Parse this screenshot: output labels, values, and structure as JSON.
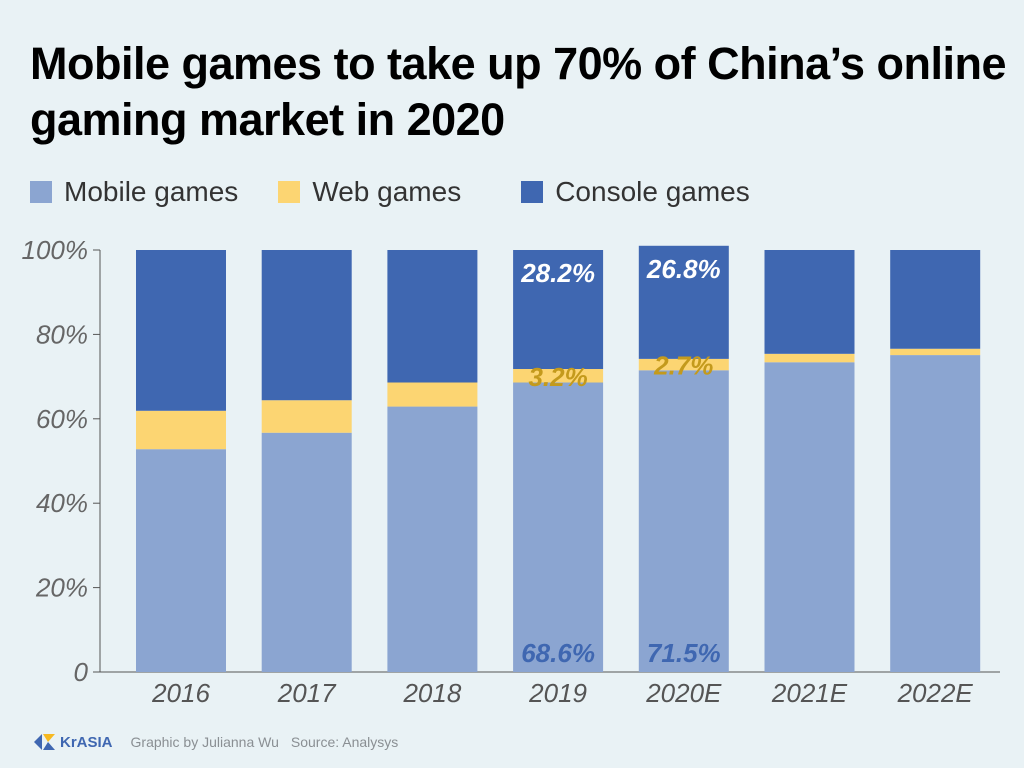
{
  "colors": {
    "mobile": "#8ba5d1",
    "web": "#fcd572",
    "console": "#3f67b1",
    "web_label": "#c49a1c",
    "axis": "#555555",
    "tick_text": "#666666"
  },
  "chart_data": {
    "type": "bar",
    "stacked": true,
    "title": "Mobile games to take up 70% of China’s online gaming market in 2020",
    "categories": [
      "2016",
      "2017",
      "2018",
      "2019",
      "2020E",
      "2021E",
      "2022E"
    ],
    "series": [
      {
        "name": "Mobile games",
        "values": [
          52.8,
          56.7,
          62.9,
          68.6,
          71.5,
          73.4,
          75.1
        ]
      },
      {
        "name": "Web games",
        "values": [
          9.1,
          7.7,
          5.7,
          3.2,
          2.7,
          2.0,
          1.5
        ]
      },
      {
        "name": "Console games",
        "values": [
          38.1,
          35.6,
          31.4,
          28.2,
          26.8,
          24.6,
          23.4
        ]
      }
    ],
    "data_labels": [
      {
        "category": "2019",
        "series": "Mobile games",
        "text": "68.6%"
      },
      {
        "category": "2019",
        "series": "Web games",
        "text": "3.2%"
      },
      {
        "category": "2019",
        "series": "Console games",
        "text": "28.2%"
      },
      {
        "category": "2020E",
        "series": "Mobile games",
        "text": "71.5%"
      },
      {
        "category": "2020E",
        "series": "Web games",
        "text": "2.7%"
      },
      {
        "category": "2020E",
        "series": "Console games",
        "text": "26.8%"
      }
    ],
    "yticks": [
      "0",
      "20%",
      "40%",
      "60%",
      "80%",
      "100%"
    ],
    "ylim": [
      0,
      100
    ],
    "grid": false,
    "legend": "top-left"
  },
  "footer": {
    "logo": "KrASIA",
    "credit": "Graphic by Julianna Wu",
    "source": "Source: Analysys"
  }
}
